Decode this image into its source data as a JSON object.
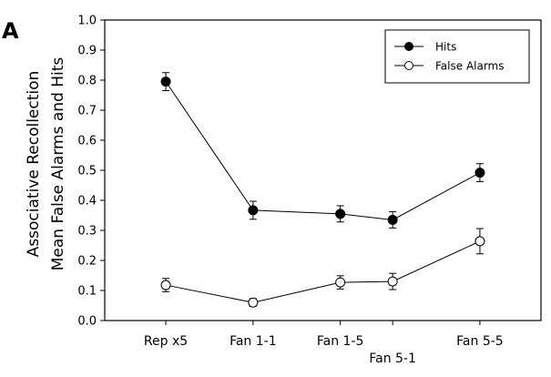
{
  "panel_label": "A",
  "chart_data": {
    "type": "line",
    "x": [
      1,
      2,
      3,
      3.6,
      4.6
    ],
    "x_tick_labels": [
      "Rep x5",
      "Fan 1-1",
      "Fan 1-5",
      "Fan 5-1",
      "Fan 5-5"
    ],
    "ylabel_line1": "Associative Recollection",
    "ylabel_line2": "Mean False Alarms and Hits",
    "xlabel": "",
    "ylim": [
      0,
      1.0
    ],
    "y_ticks": [
      "0.0",
      "0.1",
      "0.2",
      "0.3",
      "0.4",
      "0.5",
      "0.6",
      "0.7",
      "0.8",
      "0.9",
      "1.0"
    ],
    "legend_position": "top-right",
    "series": [
      {
        "name": "Hits",
        "marker": "filled-circle",
        "color": "#000000",
        "values": [
          0.795,
          0.367,
          0.355,
          0.335,
          0.492
        ],
        "errors": [
          0.03,
          0.03,
          0.027,
          0.027,
          0.03
        ]
      },
      {
        "name": "False Alarms",
        "marker": "open-circle",
        "color": "#000000",
        "values": [
          0.118,
          0.06,
          0.127,
          0.13,
          0.264
        ],
        "errors": [
          0.022,
          0.013,
          0.022,
          0.027,
          0.042
        ]
      }
    ]
  }
}
